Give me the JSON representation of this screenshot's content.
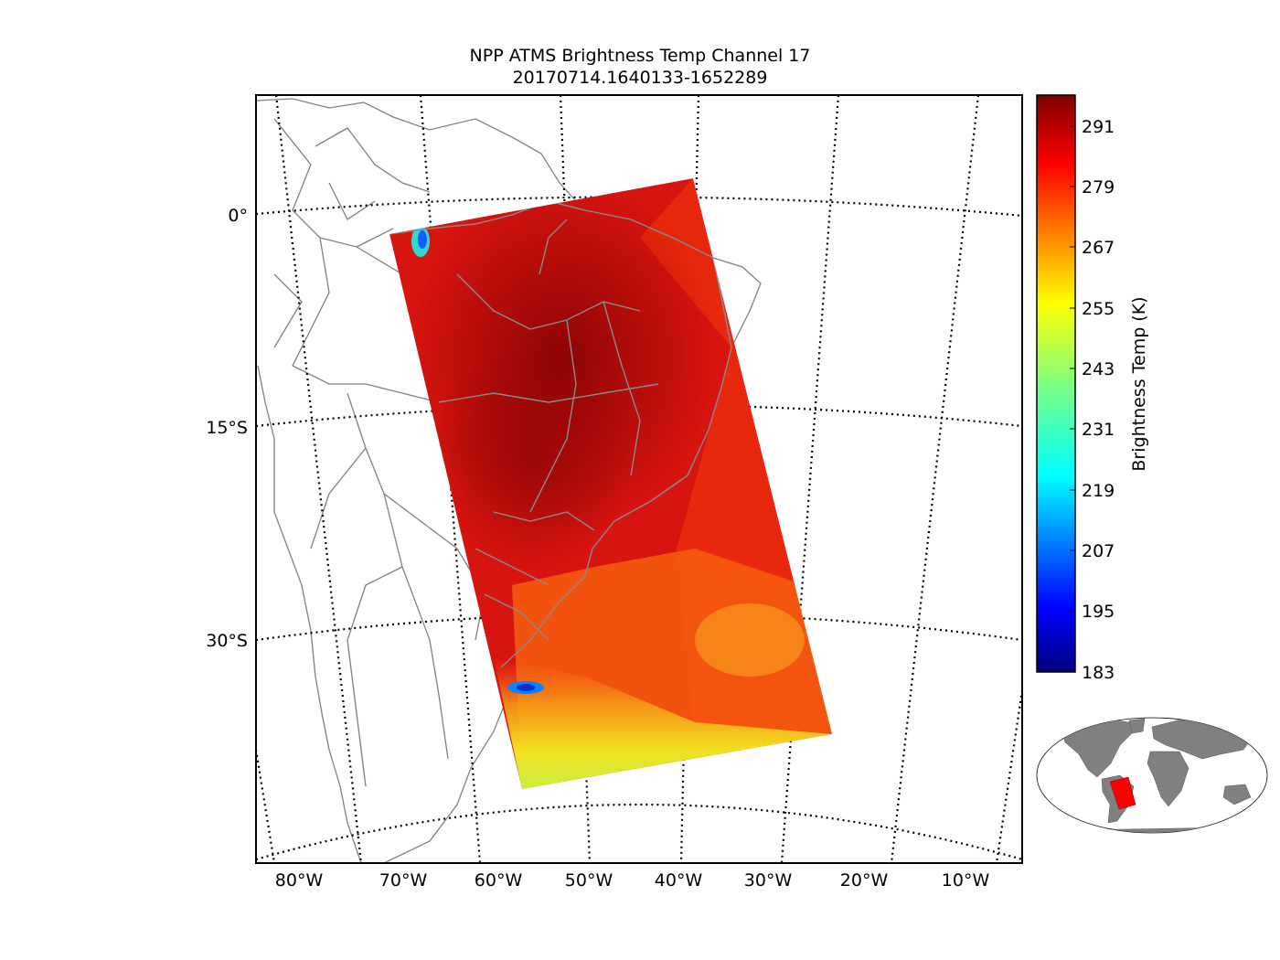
{
  "title": {
    "line1": "NPP ATMS Brightness Temp Channel 17",
    "line2": "20170714.1640133-1652289"
  },
  "map": {
    "lat_labels": [
      "0°",
      "15°S",
      "30°S"
    ],
    "lon_labels": [
      "80°W",
      "70°W",
      "60°W",
      "50°W",
      "40°W",
      "30°W",
      "20°W",
      "10°W"
    ]
  },
  "colorbar": {
    "label": "Brightness Temp (K)",
    "ticks": [
      "291",
      "279",
      "267",
      "255",
      "243",
      "231",
      "219",
      "207",
      "195",
      "183"
    ],
    "range": [
      183,
      297
    ],
    "colormap": "jet"
  },
  "colors": {
    "swath_main": "#d81410",
    "swath_dark": "#9a0606",
    "swath_ocean": "#ee2a0c",
    "swath_south": "#f56a10",
    "swath_cold": "#e8f020",
    "land_inset": "#808080",
    "swath_inset": "#ff0000"
  }
}
